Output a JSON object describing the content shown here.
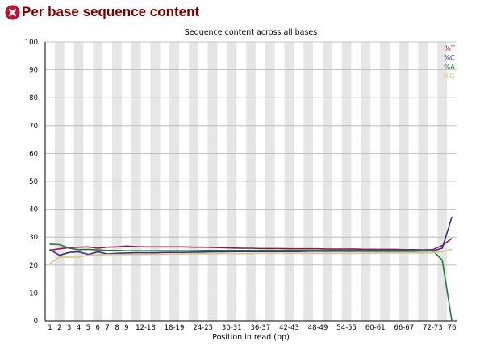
{
  "header": {
    "title": "Per base sequence content",
    "status_icon": "error-icon",
    "status_color": "#c8102e"
  },
  "chart_data": {
    "type": "line",
    "title": "Sequence content across all bases",
    "xlabel": "Position in read (bp)",
    "ylabel": "",
    "ylim": [
      0,
      100
    ],
    "y_ticks": [
      0,
      10,
      20,
      30,
      40,
      50,
      60,
      70,
      80,
      90,
      100
    ],
    "grid": "horizontal",
    "legend_position": "top-right",
    "categories": [
      "1",
      "2",
      "3",
      "4",
      "5",
      "6",
      "7",
      "8",
      "9",
      "10-11",
      "12-13",
      "14-15",
      "16-17",
      "18-19",
      "20-21",
      "22-23",
      "24-25",
      "26-27",
      "28-29",
      "30-31",
      "32-33",
      "34-35",
      "36-37",
      "38-39",
      "40-41",
      "42-43",
      "44-45",
      "46-47",
      "48-49",
      "50-51",
      "52-53",
      "54-55",
      "56-57",
      "58-59",
      "60-61",
      "62-63",
      "64-65",
      "66-67",
      "68-69",
      "70-71",
      "72-73",
      "74-75",
      "76"
    ],
    "x_tick_labels": [
      "1",
      "2",
      "3",
      "4",
      "5",
      "6",
      "7",
      "8",
      "9",
      "12-13",
      "18-19",
      "24-25",
      "30-31",
      "36-37",
      "42-43",
      "48-49",
      "54-55",
      "60-61",
      "66-67",
      "72-73",
      "76"
    ],
    "series": [
      {
        "name": "%T",
        "color": "#8b1a4a",
        "values": [
          25.3,
          25.8,
          26.2,
          26.4,
          26.5,
          26.0,
          26.4,
          26.5,
          26.8,
          26.6,
          26.5,
          26.5,
          26.5,
          26.5,
          26.5,
          26.4,
          26.4,
          26.3,
          26.2,
          26.1,
          26.0,
          26.0,
          25.9,
          25.9,
          25.9,
          25.8,
          25.8,
          25.8,
          25.8,
          25.7,
          25.7,
          25.7,
          25.7,
          25.6,
          25.6,
          25.6,
          25.6,
          25.5,
          25.5,
          25.4,
          25.5,
          27.0,
          29.5
        ]
      },
      {
        "name": "%C",
        "color": "#3d2d8c",
        "values": [
          25.5,
          23.5,
          24.5,
          24.7,
          23.8,
          24.7,
          24.0,
          24.2,
          24.3,
          24.4,
          24.4,
          24.4,
          24.5,
          24.5,
          24.5,
          24.6,
          24.6,
          24.7,
          24.7,
          24.8,
          24.8,
          24.8,
          24.8,
          24.8,
          24.8,
          24.8,
          24.8,
          24.9,
          24.9,
          24.9,
          24.9,
          24.9,
          24.9,
          24.9,
          24.9,
          24.9,
          24.9,
          24.9,
          24.9,
          25.0,
          25.0,
          26.0,
          37.2
        ]
      },
      {
        "name": "%A",
        "color": "#1e7a3a",
        "values": [
          27.5,
          27.3,
          26.0,
          25.5,
          25.6,
          25.4,
          25.2,
          25.2,
          25.1,
          25.1,
          25.1,
          25.1,
          25.1,
          25.1,
          25.1,
          25.1,
          25.2,
          25.2,
          25.2,
          25.2,
          25.2,
          25.2,
          25.2,
          25.2,
          25.2,
          25.2,
          25.2,
          25.2,
          25.2,
          25.2,
          25.2,
          25.2,
          25.2,
          25.2,
          25.2,
          25.2,
          25.2,
          25.2,
          25.2,
          25.2,
          25.2,
          21.8,
          0.0
        ]
      },
      {
        "name": "%G",
        "color": "#d8c480",
        "values": [
          20.5,
          22.8,
          22.8,
          22.9,
          23.5,
          23.6,
          23.8,
          23.8,
          23.8,
          23.8,
          23.8,
          23.9,
          23.9,
          23.9,
          24.0,
          24.0,
          24.0,
          24.0,
          24.1,
          24.1,
          24.1,
          24.1,
          24.2,
          24.2,
          24.2,
          24.2,
          24.2,
          24.2,
          24.2,
          24.2,
          24.2,
          24.2,
          24.2,
          24.2,
          24.3,
          24.3,
          24.3,
          24.3,
          24.3,
          24.3,
          24.4,
          24.8,
          25.6
        ]
      }
    ]
  }
}
